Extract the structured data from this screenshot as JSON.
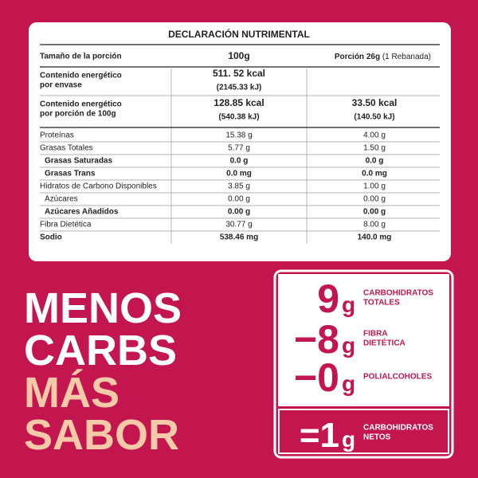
{
  "label": {
    "title": "DECLARACIÓN NUTRIMENTAL",
    "serving": {
      "label": "Tamaño de la porción",
      "col1": "100g",
      "col2": "Porción 26g",
      "col2_note": "(1 Rebanada)"
    },
    "energy_package": {
      "label": [
        "Contenido energético",
        "por envase"
      ],
      "kcal": "511. 52 kcal",
      "kj": "(2145.33 kJ)"
    },
    "energy_100g": {
      "label": [
        "Contenido energético",
        "por porción de 100g"
      ],
      "kcal": "128.85 kcal",
      "kj": "(540.38 kJ)",
      "portion_kcal": "33.50 kcal",
      "portion_kj": "(140.50 kJ)"
    },
    "rows": [
      [
        "Proteínas",
        "15.38 g",
        "4.00 g"
      ],
      [
        "Grasas Totales",
        "5.77 g",
        "1.50 g"
      ],
      [
        "Grasas Saturadas",
        "0.0 g",
        "0.0 g"
      ],
      [
        "Grasas Trans",
        "0.0 mg",
        "0.0 mg"
      ],
      [
        "Hidratos de Carbono Disponibles",
        "3.85 g",
        "1.00 g"
      ],
      [
        "Azúcares",
        "0.00 g",
        "0.00 g"
      ],
      [
        "Azúcares Añadidos",
        "0.00 g",
        "0.00 g"
      ],
      [
        "Fibra Dietética",
        "30.77 g",
        "8.00 g"
      ],
      [
        "Sodio",
        "538.46 mg",
        "140.0 mg"
      ]
    ]
  },
  "promo": {
    "lines": [
      "MENOS",
      "CARBS",
      "MÁS",
      "SABOR"
    ]
  },
  "summary": {
    "items": [
      {
        "amount": "9",
        "unit": "g",
        "label": [
          "CARBOHIDRATOS",
          "TOTALES"
        ]
      },
      {
        "amount": "−8",
        "unit": "g",
        "label": [
          "FIBRA",
          "DIETÉTICA"
        ]
      },
      {
        "amount": "−0",
        "unit": "g",
        "label": [
          "POLIALCOHOLES"
        ]
      },
      {
        "amount": "=1",
        "unit": "g",
        "label": [
          "CARBOHIDRATOS",
          "NETOS"
        ]
      }
    ]
  }
}
